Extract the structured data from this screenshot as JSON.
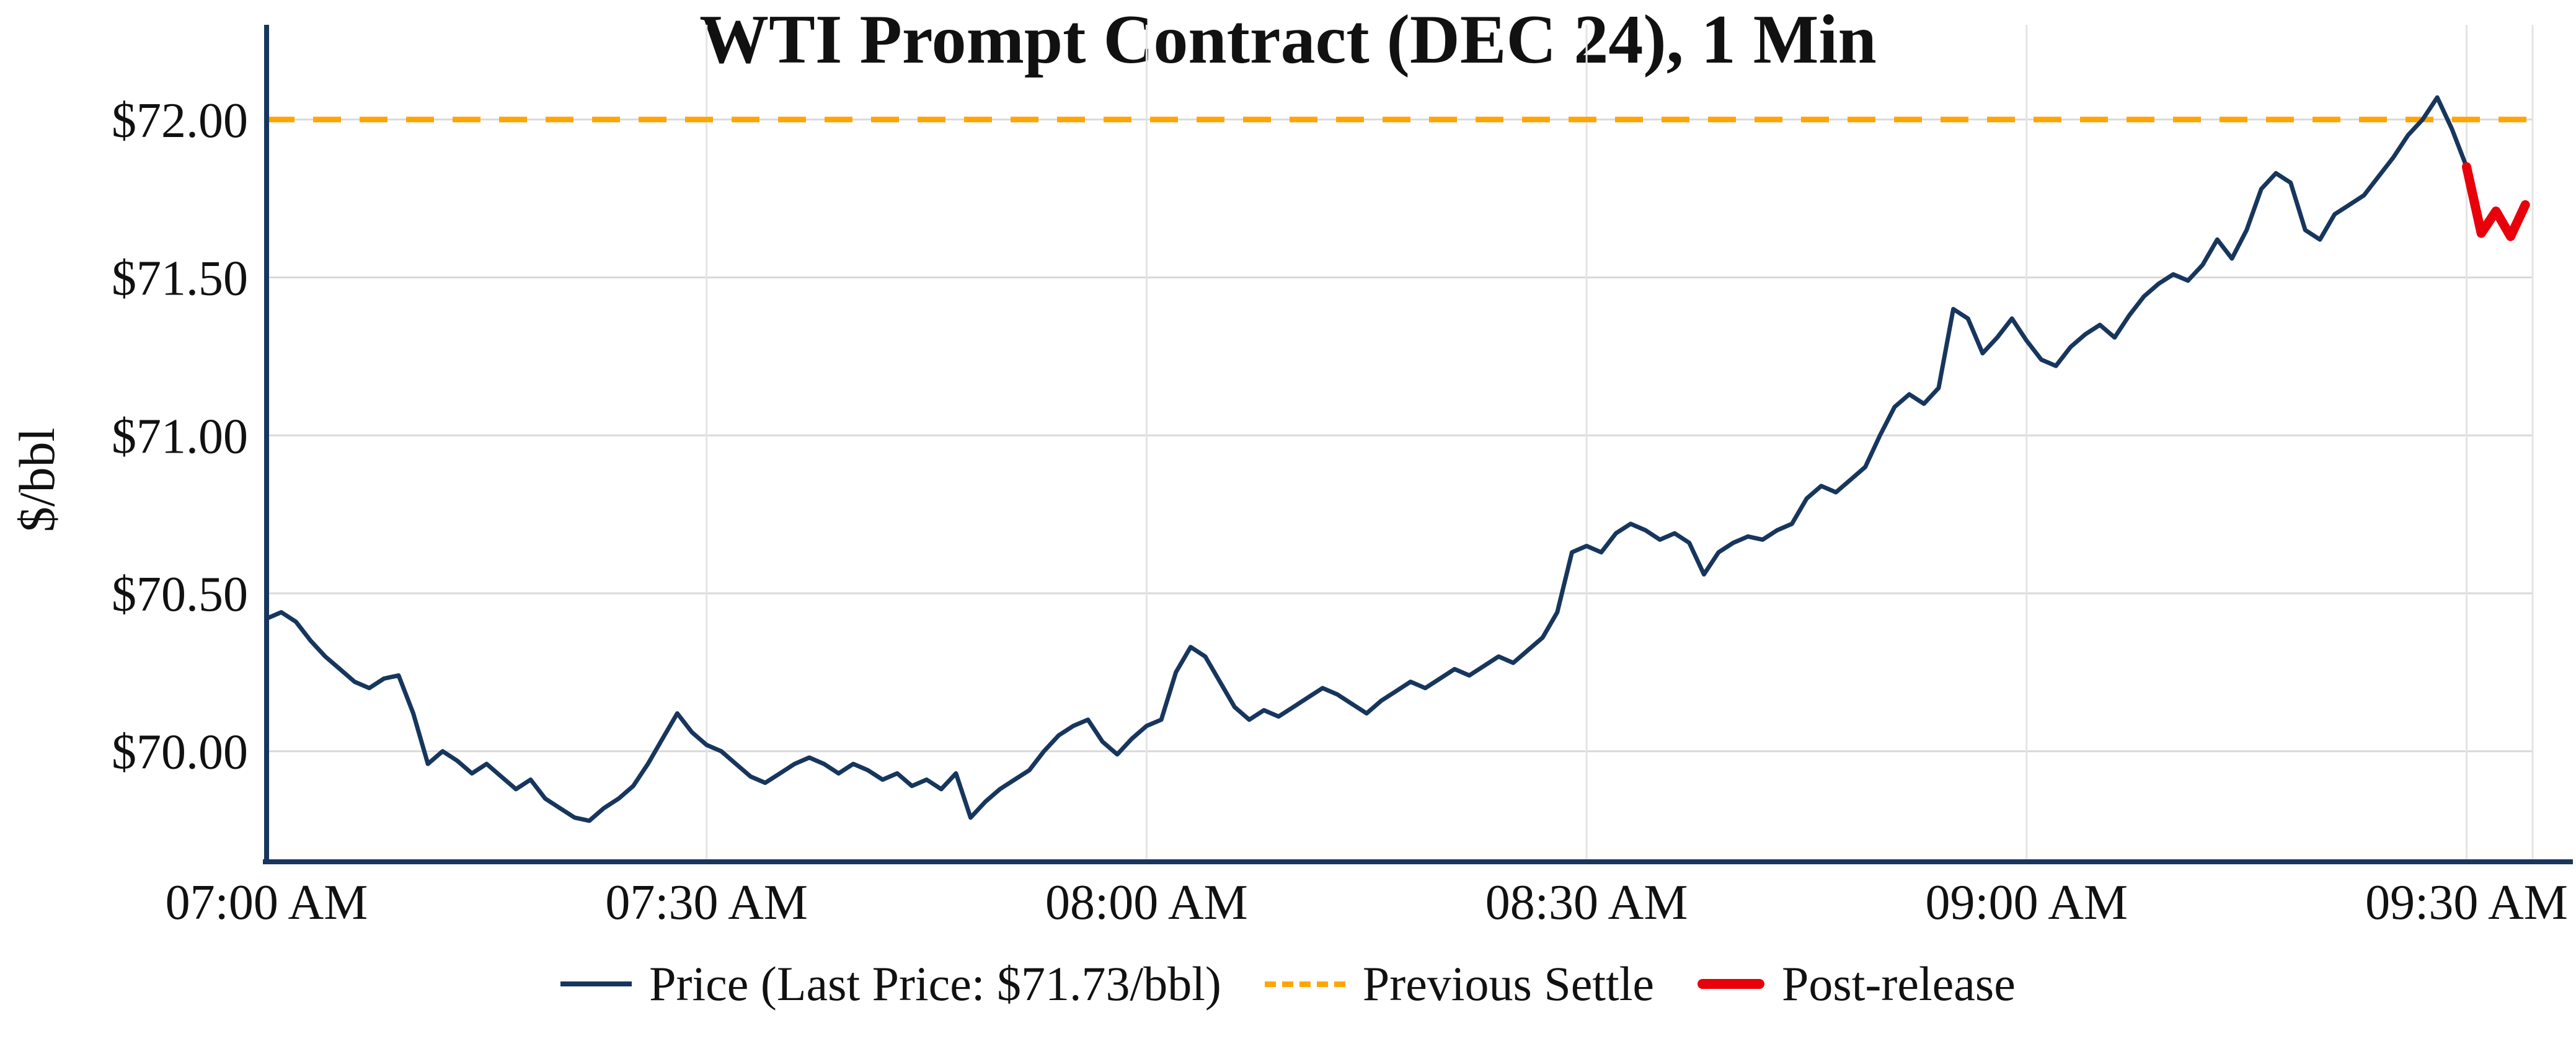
{
  "title": "WTI Prompt Contract (DEC 24), 1 Min",
  "ylabel": "$/bbl",
  "legend": {
    "price": "Price (Last Price: $71.73/bbl)",
    "settle": "Previous Settle",
    "post": "Post-release"
  },
  "chart_data": {
    "type": "line",
    "title": "WTI Prompt Contract (DEC 24), 1 Min",
    "xlabel": "",
    "ylabel": "$/bbl",
    "x_unit": "minutes since 07:00 AM, 1-minute bars",
    "xlim": [
      0,
      154.5
    ],
    "ylim": [
      69.65,
      72.3
    ],
    "grid": true,
    "legend_position": "bottom-center",
    "previous_settle": 72.0,
    "last_price": 71.73,
    "post_release_start_index": 150,
    "xticks": [
      {
        "minute": 0,
        "label": "07:00 AM"
      },
      {
        "minute": 30,
        "label": "07:30 AM"
      },
      {
        "minute": 60,
        "label": "08:00 AM"
      },
      {
        "minute": 90,
        "label": "08:30 AM"
      },
      {
        "minute": 120,
        "label": "09:00 AM"
      },
      {
        "minute": 150,
        "label": "09:30 AM"
      }
    ],
    "yticks": [
      {
        "value": 70.0,
        "label": "$70.00"
      },
      {
        "value": 70.5,
        "label": "$70.50"
      },
      {
        "value": 71.0,
        "label": "$71.00"
      },
      {
        "value": 71.5,
        "label": "$71.50"
      },
      {
        "value": 72.0,
        "label": "$72.00"
      }
    ],
    "series": [
      {
        "name": "Price",
        "values": [
          70.42,
          70.44,
          70.41,
          70.35,
          70.3,
          70.26,
          70.22,
          70.2,
          70.23,
          70.24,
          70.12,
          69.96,
          70.0,
          69.97,
          69.93,
          69.96,
          69.92,
          69.88,
          69.91,
          69.85,
          69.82,
          69.79,
          69.78,
          69.82,
          69.85,
          69.89,
          69.96,
          70.04,
          70.12,
          70.06,
          70.02,
          70.0,
          69.96,
          69.92,
          69.9,
          69.93,
          69.96,
          69.98,
          69.96,
          69.93,
          69.96,
          69.94,
          69.91,
          69.93,
          69.89,
          69.91,
          69.88,
          69.93,
          69.79,
          69.84,
          69.88,
          69.91,
          69.94,
          70.0,
          70.05,
          70.08,
          70.1,
          70.03,
          69.99,
          70.04,
          70.08,
          70.1,
          70.25,
          70.33,
          70.3,
          70.22,
          70.14,
          70.1,
          70.13,
          70.11,
          70.14,
          70.17,
          70.2,
          70.18,
          70.15,
          70.12,
          70.16,
          70.19,
          70.22,
          70.2,
          70.23,
          70.26,
          70.24,
          70.27,
          70.3,
          70.28,
          70.32,
          70.36,
          70.44,
          70.63,
          70.65,
          70.63,
          70.69,
          70.72,
          70.7,
          70.67,
          70.69,
          70.66,
          70.56,
          70.63,
          70.66,
          70.68,
          70.67,
          70.7,
          70.72,
          70.8,
          70.84,
          70.82,
          70.86,
          70.9,
          71.0,
          71.09,
          71.13,
          71.1,
          71.15,
          71.4,
          71.37,
          71.26,
          71.31,
          71.37,
          71.3,
          71.24,
          71.22,
          71.28,
          71.32,
          71.35,
          71.31,
          71.38,
          71.44,
          71.48,
          71.51,
          71.49,
          71.54,
          71.62,
          71.56,
          71.65,
          71.78,
          71.83,
          71.8,
          71.65,
          71.62,
          71.7,
          71.73,
          71.76,
          71.82,
          71.88,
          71.95,
          72.0,
          72.07,
          71.97,
          71.85,
          71.64,
          71.71,
          71.63,
          71.73
        ]
      }
    ],
    "colors": {
      "price": "#17365d",
      "settle": "#FFA500",
      "post_release": "#E8000B",
      "grid": "#d9d9d9",
      "grid_v": "#e4e4e4"
    }
  }
}
